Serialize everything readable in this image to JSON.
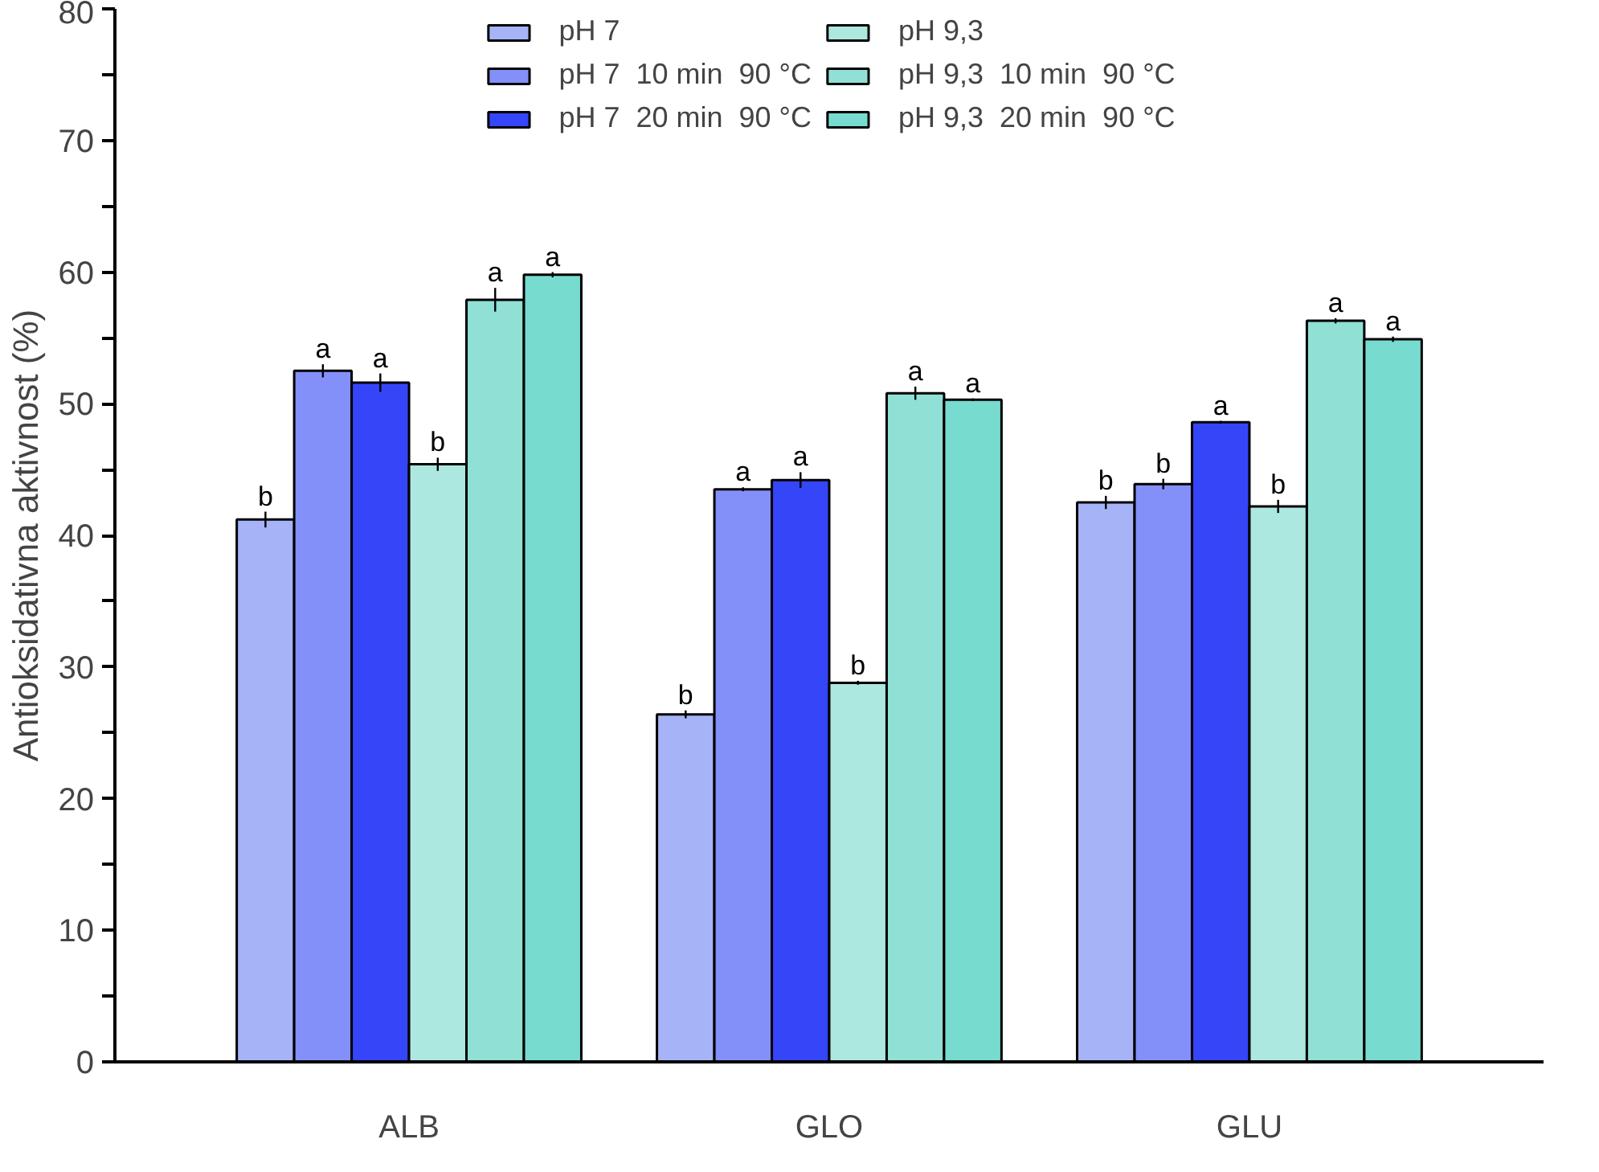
{
  "chart_data": {
    "type": "bar",
    "ylabel": "Antioksidativna aktivnost (%)",
    "categories": [
      "ALB",
      "GLO",
      "GLU"
    ],
    "ylim": [
      0,
      80
    ],
    "yticks": [
      0,
      {
        "value": 5,
        "label": null
      },
      10,
      {
        "value": 15,
        "label": null
      },
      20,
      {
        "value": 25,
        "label": null
      },
      30,
      {
        "value": 35,
        "label": null
      },
      40,
      {
        "value": 45,
        "label": null
      },
      50,
      {
        "value": 55,
        "label": null
      },
      60,
      {
        "value": 65,
        "label": null
      },
      70,
      {
        "value": 75,
        "label": null
      },
      80
    ],
    "grid": false,
    "legend": "top",
    "series": [
      {
        "name": "pH 7",
        "color": "#a6b4f7",
        "values": [
          41.2,
          26.4,
          42.5
        ],
        "errors": [
          0.6,
          0.3,
          0.5
        ],
        "value_labels": [
          "b",
          "b",
          "b"
        ]
      },
      {
        "name": "pH 7  10 min  90 °C",
        "color": "#8490f9",
        "values": [
          52.5,
          43.5,
          43.9
        ],
        "errors": [
          0.5,
          0.15,
          0.4
        ],
        "value_labels": [
          "a",
          "a",
          "b"
        ]
      },
      {
        "name": "pH 7  20 min  90 °C",
        "color": "#3545f8",
        "values": [
          51.6,
          44.2,
          48.6
        ],
        "errors": [
          0.7,
          0.6,
          0.1
        ],
        "value_labels": [
          "a",
          "a",
          "a"
        ]
      },
      {
        "name": "pH 9,3",
        "color": "#ade8e0",
        "values": [
          45.4,
          28.8,
          42.2
        ],
        "errors": [
          0.5,
          0.15,
          0.5
        ],
        "value_labels": [
          "b",
          "b",
          "b"
        ]
      },
      {
        "name": "pH 9,3  10 min  90 °C",
        "color": "#90e0d6",
        "values": [
          57.9,
          50.8,
          56.3
        ],
        "errors": [
          0.9,
          0.5,
          0.2
        ],
        "value_labels": [
          "a",
          "a",
          "a"
        ]
      },
      {
        "name": "pH 9,3  20 min  90 °C",
        "color": "#78dbd0",
        "values": [
          59.8,
          50.3,
          54.9
        ],
        "errors": [
          0.2,
          0.1,
          0.2
        ],
        "value_labels": [
          "a",
          "a",
          "a"
        ]
      }
    ]
  }
}
